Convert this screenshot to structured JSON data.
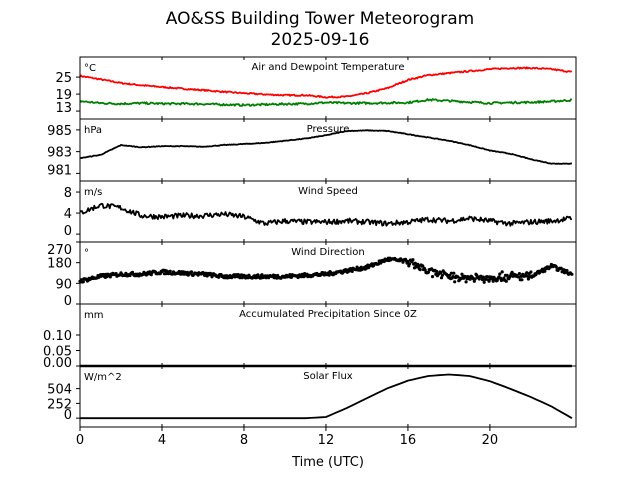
{
  "title": "AO&SS Building Tower Meteorogram",
  "subtitle": "2025-09-16",
  "chart_data": {
    "type": "line",
    "xlabel": "Time (UTC)",
    "xlim": [
      0,
      24.2
    ],
    "xticks": [
      0,
      4,
      8,
      12,
      16,
      20
    ],
    "x": [
      0,
      1,
      2,
      3,
      4,
      5,
      6,
      7,
      8,
      9,
      10,
      11,
      12,
      13,
      14,
      15,
      16,
      17,
      18,
      19,
      20,
      21,
      22,
      23,
      24
    ],
    "panels": [
      {
        "title": "Air and Dewpoint Temperature",
        "unit": "°C",
        "ylim": [
          10.2,
          32.1
        ],
        "yticks": [
          "25",
          "19",
          "13"
        ],
        "ytick_values": [
          25,
          19,
          13
        ],
        "series": [
          {
            "name": "Air Temperature",
            "color": "#ff0000",
            "values": [
              25.4,
              24.2,
              22.9,
              22.1,
              21.5,
              20.9,
              20.4,
              19.8,
              19.3,
              18.9,
              18.6,
              18.6,
              17.9,
              18.1,
              19.3,
              21.1,
              24.0,
              25.7,
              26.4,
              27.1,
              27.8,
              28.2,
              28.2,
              27.8,
              26.8
            ]
          },
          {
            "name": "Dewpoint",
            "color": "#008000",
            "values": [
              16.5,
              15.8,
              15.6,
              15.8,
              15.6,
              15.6,
              15.5,
              15.3,
              15.1,
              15.3,
              15.5,
              15.6,
              16.0,
              15.8,
              15.8,
              15.9,
              16.0,
              17.0,
              16.6,
              16.2,
              15.8,
              16.0,
              16.1,
              16.4,
              16.9
            ]
          }
        ]
      },
      {
        "title": "Pressure",
        "unit": "hPa",
        "ylim": [
          980.3,
          986.0
        ],
        "yticks": [
          "985",
          "983",
          "981"
        ],
        "ytick_values": [
          985,
          983,
          981
        ],
        "series": [
          {
            "name": "Pressure",
            "color": "#000000",
            "values": [
              982.4,
              982.7,
              983.6,
              983.4,
              983.5,
              983.5,
              983.45,
              983.6,
              983.7,
              983.8,
              984.0,
              984.2,
              984.5,
              984.9,
              984.95,
              984.9,
              984.6,
              984.3,
              984.0,
              983.6,
              983.1,
              982.8,
              982.3,
              981.9,
              981.9
            ]
          }
        ]
      },
      {
        "title": "Wind Speed",
        "unit": "m/s",
        "ylim": [
          -1.5,
          10.1
        ],
        "yticks": [
          "8",
          "4",
          "0"
        ],
        "ytick_values": [
          8,
          4,
          0
        ],
        "series": [
          {
            "name": "Wind Speed",
            "color": "#000000",
            "values": [
              4.0,
              5.5,
              5.0,
              3.5,
              3.3,
              3.5,
              3.5,
              3.8,
              3.3,
              2.0,
              2.5,
              2.3,
              2.3,
              2.5,
              2.3,
              2.0,
              2.3,
              2.8,
              2.5,
              3.0,
              2.5,
              2.0,
              2.3,
              2.5,
              3.0
            ]
          }
        ]
      },
      {
        "title": "Wind Direction",
        "unit": "°",
        "ylim": [
          0,
          270
        ],
        "yticks": [
          "270",
          "180",
          "90",
          "0"
        ],
        "ytick_values": [
          270,
          180,
          90,
          0
        ],
        "style": "scatter",
        "series": [
          {
            "name": "Wind Direction",
            "color": "#000000",
            "values": [
              100,
              120,
              130,
              130,
              140,
              135,
              130,
              120,
              120,
              120,
              120,
              125,
              130,
              145,
              160,
              195,
              185,
              140,
              120,
              115,
              115,
              120,
              120,
              165,
              130
            ]
          }
        ]
      },
      {
        "title": "Accumulated Precipitation Since 0Z",
        "unit": "mm",
        "ylim": [
          0,
          0.2
        ],
        "yticks": [
          "0.10",
          "0.05",
          "0.00"
        ],
        "ytick_values": [
          0.1,
          0.05,
          0.0
        ],
        "series": [
          {
            "name": "Precipitation",
            "color": "#000000",
            "values": [
              0,
              0,
              0,
              0,
              0,
              0,
              0,
              0,
              0,
              0,
              0,
              0,
              0,
              0,
              0,
              0,
              0,
              0,
              0,
              0,
              0,
              0,
              0,
              0,
              0
            ]
          }
        ]
      },
      {
        "title": "Solar Flux",
        "unit": "W/m^2",
        "ylim": [
          -151,
          890
        ],
        "yticks": [
          "504",
          "252",
          "0"
        ],
        "ytick_values": [
          504,
          252,
          0
        ],
        "series": [
          {
            "name": "Solar Flux",
            "color": "#000000",
            "values": [
              0,
              0,
              0,
              0,
              0,
              0,
              0,
              0,
              0,
              0,
              0,
              0,
              20,
              170,
              340,
              510,
              640,
              720,
              745,
              720,
              630,
              500,
              360,
              200,
              0
            ]
          }
        ]
      }
    ]
  }
}
